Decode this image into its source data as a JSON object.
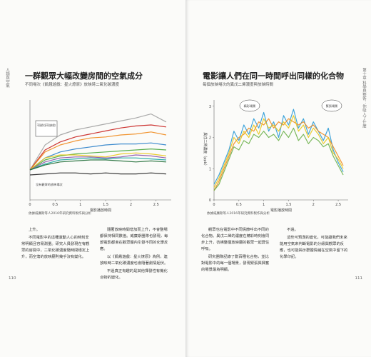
{
  "left_page": {
    "side_tab": "人類與空氣",
    "title": "一群觀眾大幅改變房間的空氣成分",
    "subtitle": "不同場次《飢餓遊戲：星火燎原》放映時二氧化碳濃度",
    "chart": {
      "type": "line",
      "x_label": "電影播放時間",
      "annotations": [
        "不同顏色代表不同放映場次",
        "沒有觀眾的放映場次"
      ],
      "x": [
        0,
        0.3,
        0.6,
        0.9,
        1.2,
        1.5,
        1.8,
        2.1,
        2.4,
        2.7
      ],
      "xlim": [
        0,
        2.8
      ],
      "xticks": [
        0,
        0.5,
        1,
        1.5,
        2,
        2.5
      ],
      "ylim": [
        0,
        10
      ],
      "series": [
        {
          "color": "#a0a0a0",
          "values": [
            3,
            5.5,
            6.5,
            7,
            7.3,
            7.6,
            7.9,
            8.2,
            8.6,
            7.8
          ]
        },
        {
          "color": "#c8201e",
          "values": [
            3,
            5,
            5.8,
            6.3,
            6.6,
            6.9,
            7.2,
            7.4,
            7.5,
            7.3
          ]
        },
        {
          "color": "#f08a1c",
          "values": [
            3,
            4.8,
            5.5,
            5.9,
            6.2,
            6.3,
            6.5,
            6.6,
            6.8,
            6.5
          ]
        },
        {
          "color": "#2a7fc9",
          "values": [
            3,
            4.2,
            4.8,
            5.1,
            5.3,
            5.5,
            5.6,
            5.6,
            5.7,
            5.5
          ]
        },
        {
          "color": "#47a63c",
          "values": [
            3,
            4,
            4.4,
            4.6,
            4.7,
            4.8,
            4.9,
            5,
            5.1,
            5
          ]
        },
        {
          "color": "#e8c61a",
          "values": [
            3,
            4.2,
            4.5,
            4.5,
            4.4,
            4.3,
            4.6,
            4.7,
            4.6,
            4.4
          ]
        },
        {
          "color": "#8a4fa8",
          "values": [
            3,
            3.8,
            4.2,
            4.3,
            4.3,
            4.2,
            4.3,
            4.5,
            4.4,
            4.2
          ]
        },
        {
          "color": "#1aa6a0",
          "values": [
            3,
            3.6,
            4,
            4.1,
            4.2,
            4.1,
            4.2,
            4.2,
            4.1,
            4
          ]
        },
        {
          "color": "#1d6b34",
          "values": [
            3,
            3.5,
            3.8,
            3.9,
            4,
            4,
            3.9,
            3.8,
            3.9,
            3.8
          ]
        },
        {
          "color": "#222222",
          "values": [
            2.5,
            2.6,
            2.7,
            2.7,
            2.6,
            2.7,
            2.6,
            2.6,
            2.7,
            2.6
          ]
        }
      ]
    },
    "source": "依據威廉斯等人2016年研究資料製作與分析",
    "columns": [
      [
        "上升。",
        "不同電影中的這種激動人心的時刻非常明顯且容易測量。研究人員發現在有觀眾的房間中，二氧化碳濃度隨時間穩定上升，而空蕩的放映廳則幾乎沒有變化。"
      ],
      [
        "隨著放映時間增加而上升，不會整場都保持相同數值。威廉斯團隊也發現，每部電影都會在觀眾體內引發不同的化學反應。",
        "以《飢餓遊戲：星火燎原》為例，連放映時二氧化碳濃度也會隨著劇情起伏。",
        "不過真正有趣的是其他揮發性有機化合物的變化。"
      ]
    ],
    "page_number": "110"
  },
  "right_page": {
    "side_tab": "第十章 科學與藝術：你吸入了什麼",
    "title": "電影讓人們在同一時間呼出同樣的化合物",
    "subtitle": "每個放映場次的異戊二烯濃度與放映時間",
    "chart": {
      "type": "line",
      "x_label": "電影播放時間",
      "y_label": "異戊二烯濃度（ppb）",
      "annotations": [
        "精彩場景",
        "緊張場景"
      ],
      "x": [
        0,
        0.1,
        0.2,
        0.3,
        0.4,
        0.5,
        0.6,
        0.7,
        0.8,
        0.9,
        1,
        1.1,
        1.2,
        1.3,
        1.4,
        1.5,
        1.6,
        1.7,
        1.8,
        1.9,
        2,
        2.1,
        2.2,
        2.3,
        2.4,
        2.5,
        2.6
      ],
      "xlim": [
        0,
        2.7
      ],
      "xticks": [
        0,
        0.5,
        1,
        1.5,
        2,
        2.5
      ],
      "ylim": [
        0,
        3.2
      ],
      "yticks": [
        0,
        1,
        2,
        3
      ],
      "series": [
        {
          "color": "#2a9ad6",
          "values": [
            0.5,
            0.8,
            1.2,
            1.6,
            2.2,
            1.9,
            2.4,
            2.1,
            2.6,
            2.3,
            2.8,
            2.2,
            2.5,
            2,
            2.7,
            2.4,
            2.9,
            2.3,
            2.6,
            2.1,
            2.5,
            2.2,
            1.9,
            2.3,
            1.6,
            1.2,
            0.9
          ]
        },
        {
          "color": "#f08a1c",
          "values": [
            0.3,
            0.6,
            1,
            1.4,
            1.8,
            2,
            2.1,
            2.3,
            2.2,
            2.5,
            2.4,
            2.6,
            2.3,
            2.5,
            2.4,
            2.6,
            2.5,
            2.4,
            2.5,
            2.3,
            2.4,
            2.2,
            2.1,
            2,
            1.7,
            1.4,
            1.1
          ]
        },
        {
          "color": "#e8c61a",
          "values": [
            0.4,
            0.7,
            1.1,
            1.5,
            2,
            1.8,
            2.2,
            2,
            2.4,
            2.1,
            2.6,
            2.3,
            2.4,
            2.2,
            2.5,
            2.3,
            2.7,
            2.2,
            2.4,
            2,
            2.3,
            2.1,
            1.8,
            2,
            1.5,
            1.3,
            1
          ]
        },
        {
          "color": "#6bb04a",
          "values": [
            0.3,
            0.5,
            0.9,
            1.3,
            1.7,
            1.6,
            1.9,
            1.8,
            2.1,
            2,
            2.2,
            2,
            2.1,
            1.9,
            2.2,
            2,
            2.3,
            1.9,
            2.1,
            1.8,
            2,
            1.9,
            1.7,
            1.8,
            1.4,
            1.1,
            0.8
          ]
        }
      ]
    },
    "source": "依據威廉斯等人2016年研究資料製作與分析",
    "columns": [
      [
        "觀眾也在電影中不同情節呼出不同的化合物。異戊二烯的濃度在精彩時刻會同步上升，彷彿整個放映廳的觀眾一起屏住呼吸。",
        "研究團隊記錄了數百種化合物，並比對電影中的每一個場景，發現緊張與興奮的場景最為明顯。"
      ],
      [
        "不過。",
        "這些可預測的變化，可能讓我們未來能用空氣來判斷電影的分級與觀眾的反應，也可能揭示群體情緒在空氣中留下的化學印記。"
      ]
    ],
    "page_number": "111"
  }
}
